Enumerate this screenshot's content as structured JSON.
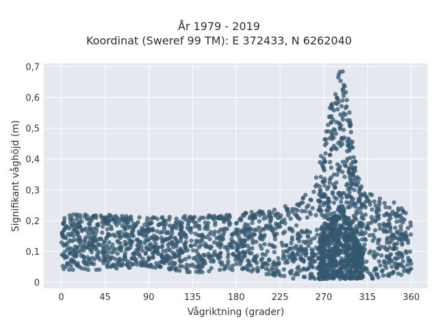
{
  "chart_data": {
    "type": "scatter",
    "title": "År 1979 - 2019",
    "subtitle": "Koordinat (Sweref 99 TM): E 372433, N 6262040",
    "xlabel": "Vågriktning (grader)",
    "ylabel": "Signifikant våghöjd (m)",
    "xlim": [
      -18,
      377
    ],
    "ylim": [
      -0.02,
      0.71
    ],
    "x_ticks": [
      0,
      45,
      90,
      135,
      180,
      225,
      270,
      315,
      360
    ],
    "x_tick_labels": [
      "0",
      "45",
      "90",
      "135",
      "180",
      "225",
      "270",
      "315",
      "360"
    ],
    "y_ticks": [
      0,
      0.1,
      0.2,
      0.3,
      0.4,
      0.5,
      0.6,
      0.7
    ],
    "y_tick_labels": [
      "0",
      "0,1",
      "0,2",
      "0,3",
      "0,4",
      "0,5",
      "0,6",
      "0,7"
    ],
    "grid": true,
    "legend": "none",
    "marker_color": "#34586f",
    "background": "#e5e8ef",
    "envelope": {
      "x": [
        0,
        20,
        45,
        90,
        135,
        180,
        200,
        225,
        240,
        255,
        265,
        270,
        275,
        280,
        285,
        290,
        295,
        300,
        305,
        310,
        315,
        330,
        345,
        360
      ],
      "y_min": [
        0.04,
        0.04,
        0.04,
        0.05,
        0.03,
        0.04,
        0.03,
        0.02,
        0.01,
        0.01,
        0.01,
        0.01,
        0.01,
        0.01,
        0.01,
        0.01,
        0.01,
        0.01,
        0.01,
        0.01,
        0.01,
        0.01,
        0.02,
        0.03
      ],
      "y_max": [
        0.22,
        0.22,
        0.22,
        0.21,
        0.22,
        0.22,
        0.23,
        0.24,
        0.26,
        0.3,
        0.38,
        0.46,
        0.55,
        0.62,
        0.69,
        0.69,
        0.6,
        0.45,
        0.36,
        0.31,
        0.29,
        0.27,
        0.26,
        0.23
      ]
    }
  }
}
